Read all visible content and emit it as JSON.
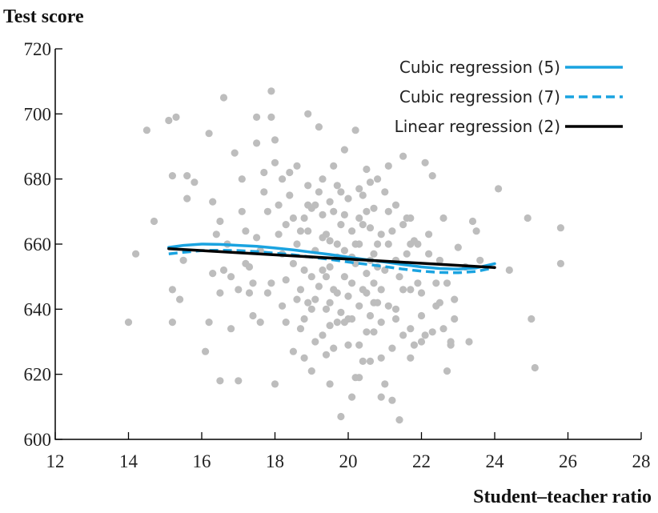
{
  "chart_data": {
    "type": "scatter",
    "ylabel": "Test score",
    "xlabel": "Student–teacher ratio",
    "xlim": [
      12,
      28
    ],
    "ylim": [
      600,
      720
    ],
    "xticks": [
      12,
      14,
      16,
      18,
      20,
      22,
      24,
      26,
      28
    ],
    "yticks": [
      600,
      620,
      640,
      660,
      680,
      700,
      720
    ],
    "legend_position": "top-right",
    "colors": {
      "points": "#bdbdbd",
      "cubic5": "#1aa3e0",
      "cubic7": "#1aa3e0",
      "linear": "#000000"
    },
    "scatter_points": [
      [
        14.0,
        636
      ],
      [
        14.2,
        657
      ],
      [
        14.5,
        695
      ],
      [
        14.7,
        667
      ],
      [
        15.1,
        698
      ],
      [
        15.3,
        699
      ],
      [
        15.2,
        681
      ],
      [
        15.4,
        643
      ],
      [
        15.5,
        655
      ],
      [
        15.2,
        646
      ],
      [
        15.2,
        636
      ],
      [
        15.6,
        681
      ],
      [
        15.6,
        674
      ],
      [
        15.8,
        679
      ],
      [
        16.2,
        694
      ],
      [
        16.3,
        673
      ],
      [
        16.2,
        636
      ],
      [
        16.1,
        627
      ],
      [
        16.3,
        651
      ],
      [
        16.5,
        645
      ],
      [
        16.6,
        705
      ],
      [
        16.5,
        618
      ],
      [
        16.8,
        634
      ],
      [
        16.9,
        688
      ],
      [
        16.6,
        652
      ],
      [
        17.1,
        680
      ],
      [
        17.0,
        618
      ],
      [
        17.2,
        654
      ],
      [
        17.3,
        645
      ],
      [
        17.5,
        691
      ],
      [
        17.5,
        699
      ],
      [
        17.5,
        662
      ],
      [
        17.4,
        648
      ],
      [
        17.7,
        682
      ],
      [
        17.7,
        676
      ],
      [
        17.6,
        636
      ],
      [
        17.8,
        670
      ],
      [
        17.8,
        645
      ],
      [
        17.9,
        699
      ],
      [
        17.9,
        707
      ],
      [
        18.0,
        692
      ],
      [
        18.0,
        617
      ],
      [
        18.1,
        672
      ],
      [
        18.2,
        641
      ],
      [
        18.3,
        666
      ],
      [
        18.3,
        649
      ],
      [
        18.4,
        682
      ],
      [
        18.5,
        627
      ],
      [
        18.6,
        660
      ],
      [
        18.7,
        664
      ],
      [
        18.8,
        637
      ],
      [
        18.9,
        678
      ],
      [
        18.9,
        700
      ],
      [
        18.9,
        642
      ],
      [
        18.8,
        652
      ],
      [
        18.6,
        684
      ],
      [
        19.0,
        621
      ],
      [
        19.0,
        671
      ],
      [
        19.1,
        658
      ],
      [
        19.2,
        696
      ],
      [
        19.2,
        647
      ],
      [
        19.3,
        669
      ],
      [
        19.3,
        632
      ],
      [
        19.4,
        640
      ],
      [
        19.4,
        663
      ],
      [
        19.5,
        653
      ],
      [
        19.5,
        673
      ],
      [
        19.5,
        617
      ],
      [
        19.6,
        646
      ],
      [
        19.6,
        684
      ],
      [
        19.7,
        660
      ],
      [
        19.7,
        636
      ],
      [
        19.8,
        607
      ],
      [
        19.8,
        666
      ],
      [
        19.9,
        689
      ],
      [
        19.9,
        650
      ],
      [
        20.0,
        629
      ],
      [
        20.0,
        674
      ],
      [
        20.1,
        613
      ],
      [
        20.1,
        656
      ],
      [
        20.2,
        695
      ],
      [
        20.2,
        660
      ],
      [
        20.3,
        641
      ],
      [
        20.3,
        668
      ],
      [
        20.3,
        619
      ],
      [
        20.4,
        646
      ],
      [
        20.4,
        675
      ],
      [
        20.5,
        633
      ],
      [
        20.5,
        683
      ],
      [
        20.6,
        655
      ],
      [
        20.6,
        665
      ],
      [
        20.6,
        624
      ],
      [
        20.7,
        642
      ],
      [
        20.7,
        648
      ],
      [
        20.8,
        680
      ],
      [
        20.8,
        660
      ],
      [
        20.9,
        613
      ],
      [
        20.9,
        636
      ],
      [
        21.0,
        617
      ],
      [
        21.0,
        652
      ],
      [
        21.1,
        670
      ],
      [
        21.2,
        612
      ],
      [
        21.2,
        664
      ],
      [
        21.3,
        640
      ],
      [
        21.4,
        606
      ],
      [
        21.5,
        687
      ],
      [
        21.5,
        646
      ],
      [
        21.6,
        657
      ],
      [
        21.7,
        668
      ],
      [
        21.7,
        634
      ],
      [
        21.8,
        629
      ],
      [
        21.9,
        648
      ],
      [
        22.0,
        645
      ],
      [
        22.1,
        685
      ],
      [
        22.2,
        663
      ],
      [
        22.3,
        633
      ],
      [
        22.3,
        681
      ],
      [
        22.4,
        648
      ],
      [
        22.5,
        655
      ],
      [
        22.6,
        668
      ],
      [
        22.7,
        621
      ],
      [
        22.7,
        648
      ],
      [
        22.8,
        629
      ],
      [
        22.8,
        630
      ],
      [
        22.9,
        643
      ],
      [
        23.0,
        659
      ],
      [
        23.2,
        653
      ],
      [
        23.4,
        667
      ],
      [
        23.5,
        664
      ],
      [
        23.6,
        655
      ],
      [
        24.1,
        677
      ],
      [
        24.4,
        652
      ],
      [
        24.9,
        668
      ],
      [
        25.0,
        637
      ],
      [
        25.1,
        622
      ],
      [
        25.8,
        665
      ],
      [
        25.8,
        654
      ],
      [
        19.1,
        672
      ],
      [
        19.3,
        652
      ],
      [
        19.5,
        661
      ],
      [
        19.7,
        645
      ],
      [
        19.9,
        669
      ],
      [
        20.1,
        648
      ],
      [
        20.3,
        677
      ],
      [
        20.5,
        651
      ],
      [
        20.7,
        671
      ],
      [
        20.9,
        646
      ],
      [
        18.5,
        668
      ],
      [
        18.7,
        646
      ],
      [
        18.9,
        664
      ],
      [
        19.1,
        630
      ],
      [
        19.3,
        680
      ],
      [
        19.5,
        642
      ],
      [
        19.7,
        656
      ],
      [
        19.9,
        636
      ],
      [
        20.1,
        664
      ],
      [
        20.3,
        629
      ],
      [
        20.5,
        645
      ],
      [
        20.7,
        633
      ],
      [
        20.9,
        663
      ],
      [
        21.1,
        641
      ],
      [
        21.3,
        655
      ],
      [
        21.5,
        666
      ],
      [
        21.7,
        646
      ],
      [
        21.9,
        660
      ],
      [
        22.1,
        632
      ],
      [
        18.2,
        657
      ],
      [
        18.4,
        675
      ],
      [
        18.6,
        643
      ],
      [
        18.8,
        668
      ],
      [
        19.0,
        640
      ],
      [
        19.2,
        676
      ],
      [
        19.4,
        650
      ],
      [
        19.6,
        670
      ],
      [
        19.8,
        639
      ],
      [
        20.0,
        644
      ],
      [
        20.2,
        654
      ],
      [
        20.4,
        666
      ],
      [
        20.6,
        638
      ],
      [
        20.8,
        653
      ],
      [
        21.0,
        676
      ],
      [
        21.2,
        628
      ],
      [
        21.4,
        650
      ],
      [
        21.6,
        668
      ],
      [
        21.8,
        661
      ],
      [
        22.0,
        638
      ],
      [
        17.9,
        648
      ],
      [
        18.1,
        663
      ],
      [
        18.3,
        636
      ],
      [
        18.5,
        654
      ],
      [
        18.7,
        634
      ],
      [
        18.9,
        672
      ],
      [
        19.1,
        643
      ],
      [
        19.3,
        662
      ],
      [
        19.5,
        635
      ],
      [
        19.7,
        678
      ],
      [
        19.9,
        658
      ],
      [
        20.1,
        637
      ],
      [
        20.3,
        660
      ],
      [
        20.5,
        670
      ],
      [
        20.7,
        657
      ],
      [
        20.9,
        625
      ],
      [
        21.1,
        660
      ],
      [
        21.3,
        637
      ],
      [
        21.5,
        632
      ],
      [
        21.7,
        660
      ],
      [
        22.2,
        657
      ],
      [
        22.4,
        641
      ],
      [
        22.6,
        634
      ],
      [
        22.9,
        637
      ],
      [
        23.3,
        630
      ],
      [
        17.6,
        658
      ],
      [
        17.4,
        638
      ],
      [
        17.2,
        664
      ],
      [
        17.0,
        646
      ],
      [
        16.8,
        650
      ],
      [
        16.4,
        663
      ],
      [
        19.0,
        650
      ],
      [
        19.6,
        628
      ],
      [
        20.0,
        637
      ],
      [
        20.8,
        642
      ],
      [
        21.3,
        672
      ],
      [
        19.4,
        626
      ],
      [
        20.4,
        624
      ],
      [
        18.0,
        685
      ],
      [
        18.2,
        680
      ],
      [
        19.8,
        676
      ],
      [
        20.6,
        679
      ],
      [
        21.1,
        684
      ],
      [
        18.8,
        625
      ],
      [
        20.2,
        619
      ],
      [
        21.7,
        625
      ],
      [
        22.0,
        630
      ],
      [
        22.5,
        642
      ],
      [
        17.3,
        653
      ],
      [
        17.1,
        670
      ],
      [
        16.7,
        660
      ],
      [
        16.5,
        667
      ]
    ],
    "series": [
      {
        "name": "Cubic regression (5)",
        "style": "solid",
        "points": [
          [
            15.1,
            659
          ],
          [
            15.5,
            659.6
          ],
          [
            16,
            660
          ],
          [
            16.5,
            659.9
          ],
          [
            17,
            659.6
          ],
          [
            17.5,
            659.3
          ],
          [
            18,
            658.8
          ],
          [
            18.5,
            658.2
          ],
          [
            19,
            657.5
          ],
          [
            19.5,
            656.8
          ],
          [
            20,
            656
          ],
          [
            20.5,
            655.2
          ],
          [
            21,
            654.5
          ],
          [
            21.5,
            653.7
          ],
          [
            22,
            653
          ],
          [
            22.5,
            652.5
          ],
          [
            23,
            652.3
          ],
          [
            23.5,
            652.7
          ],
          [
            24,
            654
          ]
        ]
      },
      {
        "name": "Cubic regression (7)",
        "style": "dashed",
        "points": [
          [
            15.1,
            657
          ],
          [
            15.5,
            657.5
          ],
          [
            16,
            658
          ],
          [
            16.5,
            658.1
          ],
          [
            17,
            658
          ],
          [
            17.5,
            657.7
          ],
          [
            18,
            657.2
          ],
          [
            18.5,
            656.7
          ],
          [
            19,
            656
          ],
          [
            19.5,
            655.3
          ],
          [
            20,
            654.5
          ],
          [
            20.5,
            653.8
          ],
          [
            21,
            653.1
          ],
          [
            21.5,
            652.3
          ],
          [
            22,
            651.7
          ],
          [
            22.5,
            651.3
          ],
          [
            23,
            651.2
          ],
          [
            23.5,
            651.6
          ],
          [
            24,
            652.8
          ]
        ]
      },
      {
        "name": "Linear regression (2)",
        "style": "solid",
        "points": [
          [
            15.1,
            658.6
          ],
          [
            24,
            652.8
          ]
        ]
      }
    ]
  }
}
